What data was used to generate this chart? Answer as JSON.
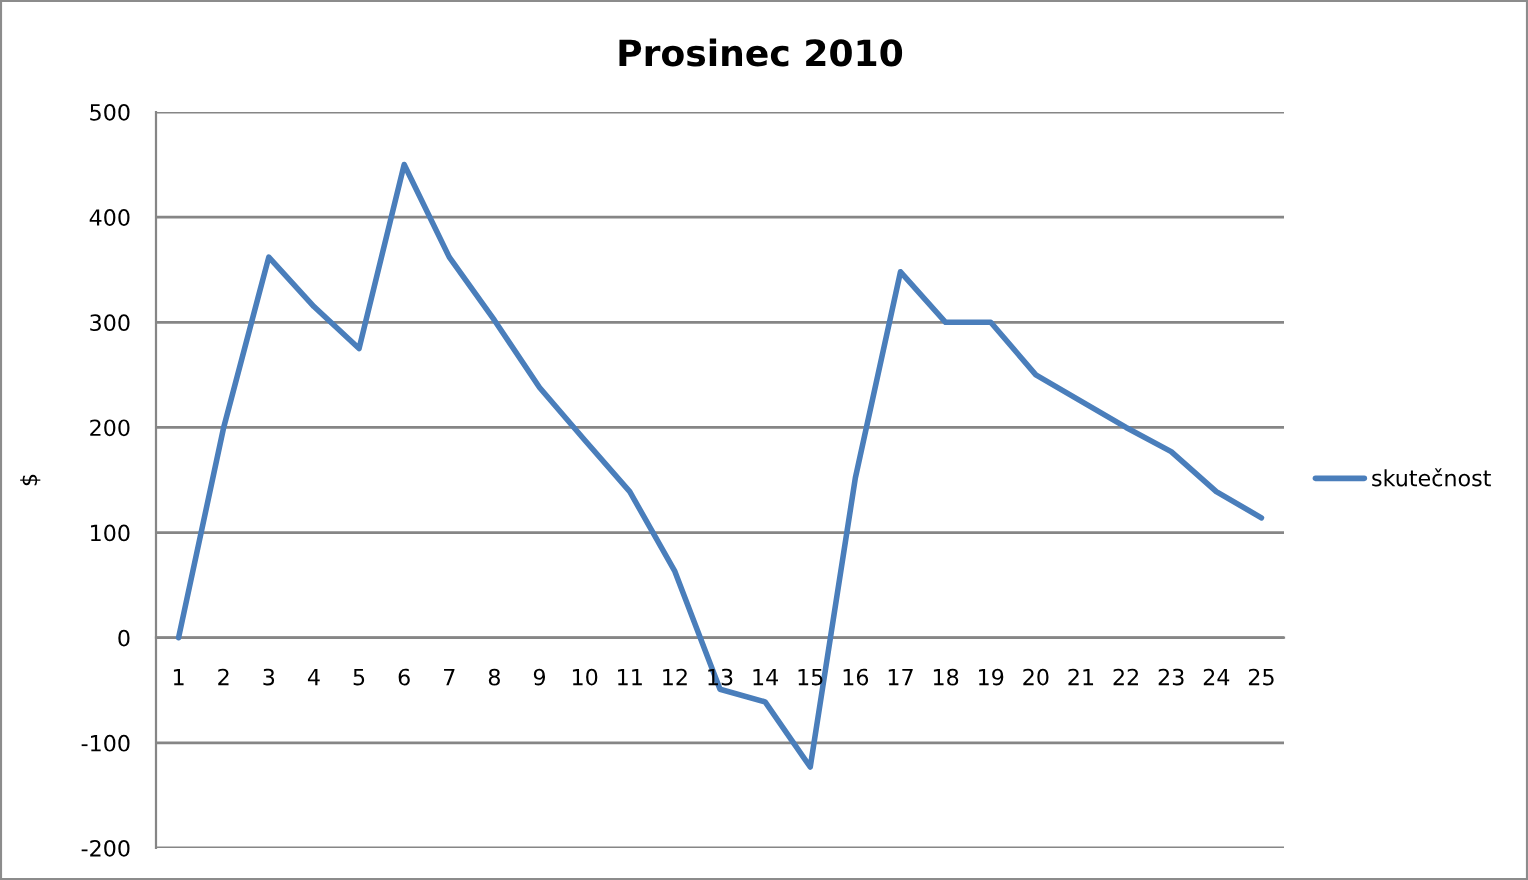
{
  "chart_data": {
    "type": "line",
    "title": "Prosinec 2010",
    "ylabel": "$",
    "categories": [
      "1",
      "2",
      "3",
      "4",
      "5",
      "6",
      "7",
      "8",
      "9",
      "10",
      "11",
      "12",
      "13",
      "14",
      "15",
      "16",
      "17",
      "18",
      "19",
      "20",
      "21",
      "22",
      "23",
      "24",
      "25"
    ],
    "series": [
      {
        "name": "skutečnost",
        "color": "#4a7ebb",
        "values": [
          0,
          200,
          362,
          315,
          275,
          450,
          362,
          302,
          238,
          188,
          139,
          63,
          -49,
          -61,
          -123,
          152,
          348,
          300,
          300,
          250,
          225,
          200,
          177,
          139,
          114
        ]
      }
    ],
    "ylim": [
      -200,
      500
    ],
    "yticks": [
      -200,
      -100,
      0,
      100,
      200,
      300,
      400,
      500
    ],
    "grid": "y",
    "legend": "right",
    "marker": "none",
    "line_style": "solid"
  }
}
